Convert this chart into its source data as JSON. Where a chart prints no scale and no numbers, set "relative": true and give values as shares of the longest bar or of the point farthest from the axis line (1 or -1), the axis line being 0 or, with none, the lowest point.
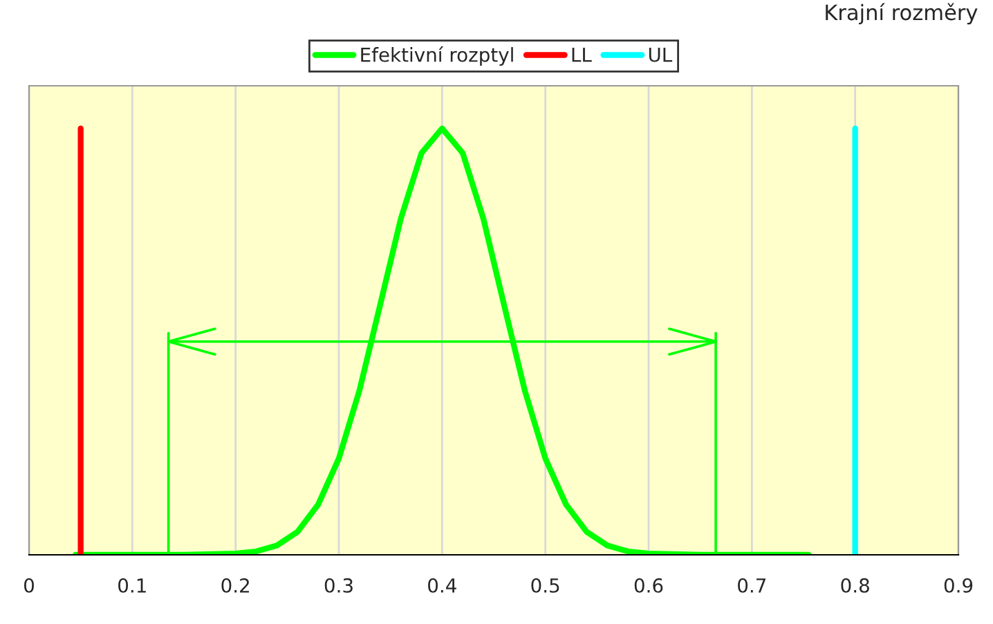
{
  "chart_data": {
    "type": "line",
    "title": "Krajní rozměry",
    "relative": true,
    "xlim": [
      0,
      0.9
    ],
    "xticks": [
      0,
      0.1,
      0.2,
      0.3,
      0.4,
      0.5,
      0.6,
      0.7,
      0.8,
      0.9
    ],
    "grid": "x",
    "legend": "top",
    "marker": "none",
    "line_style": "solid",
    "series": [
      {
        "name": "Efektivní rozptyl",
        "color": "#00ff00",
        "x": [
          0.045,
          0.15,
          0.2,
          0.22,
          0.24,
          0.26,
          0.28,
          0.3,
          0.32,
          0.34,
          0.36,
          0.38,
          0.4,
          0.42,
          0.44,
          0.46,
          0.48,
          0.5,
          0.52,
          0.54,
          0.56,
          0.58,
          0.6,
          0.65,
          0.755
        ],
        "values": [
          0,
          0,
          0.003,
          0.008,
          0.022,
          0.054,
          0.118,
          0.226,
          0.386,
          0.586,
          0.788,
          0.942,
          1,
          0.942,
          0.788,
          0.586,
          0.386,
          0.226,
          0.118,
          0.054,
          0.022,
          0.008,
          0.003,
          0,
          0
        ]
      },
      {
        "name": "LL",
        "color": "#ff0000",
        "x": [
          0.05,
          0.05
        ],
        "values": [
          0,
          1
        ]
      },
      {
        "name": "UL",
        "color": "#00ffff",
        "x": [
          0.8,
          0.8
        ],
        "values": [
          0,
          1
        ]
      },
      {
        "type": "line",
        "color": "#00ff00",
        "x": [
          0.135,
          0.135,
          0.135,
          0.665,
          0.665,
          0.665
        ],
        "values": [
          0,
          0.52,
          0.5,
          0.5,
          0.52,
          0
        ]
      }
    ]
  }
}
